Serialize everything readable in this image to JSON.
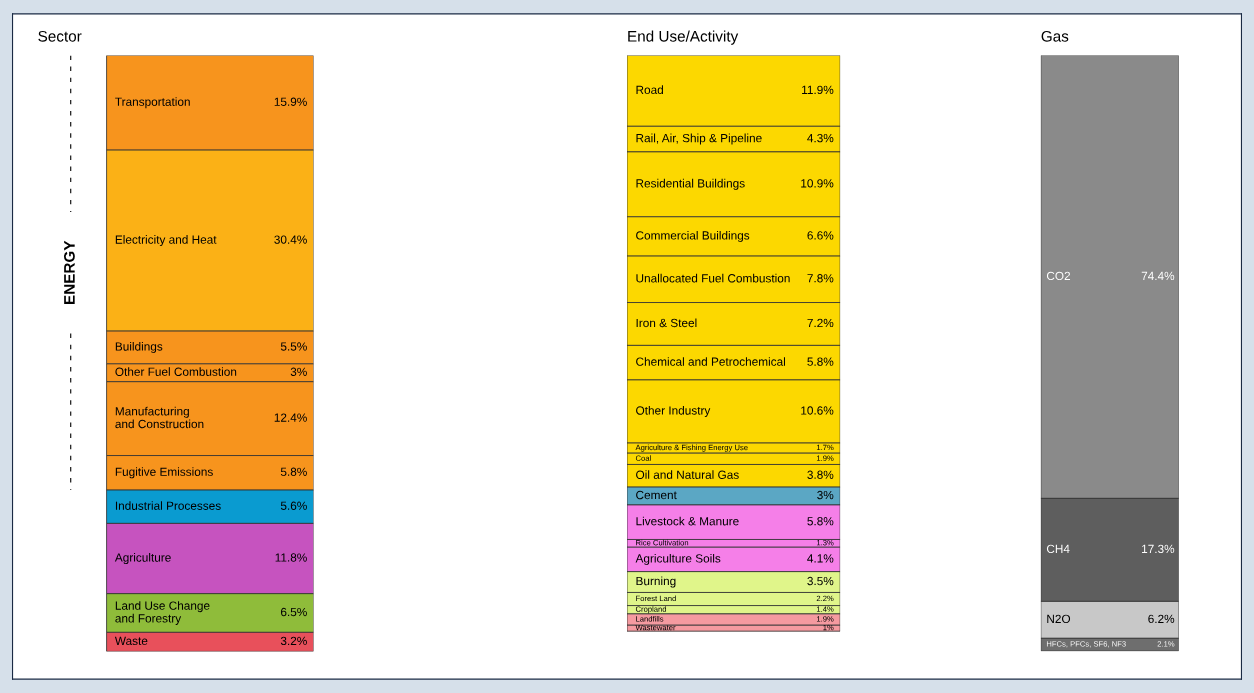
{
  "chart_data": [
    {
      "type": "other",
      "title": "Sector",
      "annotations": [
        "ENERGY"
      ],
      "categories": [
        "Transportation",
        "Electricity and Heat",
        "Buildings",
        "Other Fuel Combustion",
        "Manufacturing\nand Construction",
        "Fugitive Emissions",
        "Industrial Processes",
        "Agriculture",
        "Land Use Change\nand Forestry",
        "Waste"
      ],
      "values": [
        15.9,
        30.4,
        5.5,
        3,
        12.4,
        5.8,
        5.6,
        11.8,
        6.5,
        3.2
      ],
      "value_labels": [
        "15.9%",
        "30.4%",
        "5.5%",
        "3%",
        "12.4%",
        "5.8%",
        "5.6%",
        "11.8%",
        "6.5%",
        "3.2%"
      ],
      "colors": [
        "#f7941d",
        "#fbb116",
        "#f7941d",
        "#f7941d",
        "#f7941d",
        "#f7941d",
        "#0a9bd0",
        "#c653bf",
        "#8fbc3a",
        "#e8505b"
      ]
    },
    {
      "type": "other",
      "title": "End Use/Activity",
      "categories": [
        "Road",
        "Rail, Air, Ship & Pipeline",
        "Residential Buildings",
        "Commercial Buildings",
        "Unallocated Fuel Combustion",
        "Iron & Steel",
        "Chemical and Petrochemical",
        "Other Industry",
        "Agriculture & Fishing Energy Use",
        "Coal",
        "Oil and Natural Gas",
        "Cement",
        "Livestock & Manure",
        "Rice Cultivation",
        "Agriculture Soils",
        "Burning",
        "Forest Land",
        "Cropland",
        "Landfills",
        "Wastewater"
      ],
      "values": [
        11.9,
        4.3,
        10.9,
        6.6,
        7.8,
        7.2,
        5.8,
        10.6,
        1.7,
        1.9,
        3.8,
        3,
        5.8,
        1.3,
        4.1,
        3.5,
        2.2,
        1.4,
        1.9,
        1
      ],
      "value_labels": [
        "11.9%",
        "4.3%",
        "10.9%",
        "6.6%",
        "7.8%",
        "7.2%",
        "5.8%",
        "10.6%",
        "1.7%",
        "1.9%",
        "3.8%",
        "3%",
        "5.8%",
        "1.3%",
        "4.1%",
        "3.5%",
        "2.2%",
        "1.4%",
        "1.9%",
        "1%"
      ],
      "colors": [
        "#fcd800",
        "#fcd800",
        "#fcd800",
        "#fcd800",
        "#fcd800",
        "#fcd800",
        "#fcd800",
        "#fcd800",
        "#fcd800",
        "#fcd800",
        "#fcd800",
        "#5ba7c4",
        "#f57fe8",
        "#f57fe8",
        "#f57fe8",
        "#e0f58a",
        "#e0f58a",
        "#e0f58a",
        "#f59aa0",
        "#f59aa0"
      ]
    },
    {
      "type": "other",
      "title": "Gas",
      "categories": [
        "CO2",
        "CH4",
        "N2O",
        "HFCs, PFCs, SF6, NF3"
      ],
      "values": [
        74.4,
        17.3,
        6.2,
        2.1
      ],
      "value_labels": [
        "74.4%",
        "17.3%",
        "6.2%",
        "2.1%"
      ],
      "colors": [
        "#8a8a8a",
        "#5e5e5e",
        "#c8c8c8",
        "#6e6e6e"
      ]
    }
  ]
}
